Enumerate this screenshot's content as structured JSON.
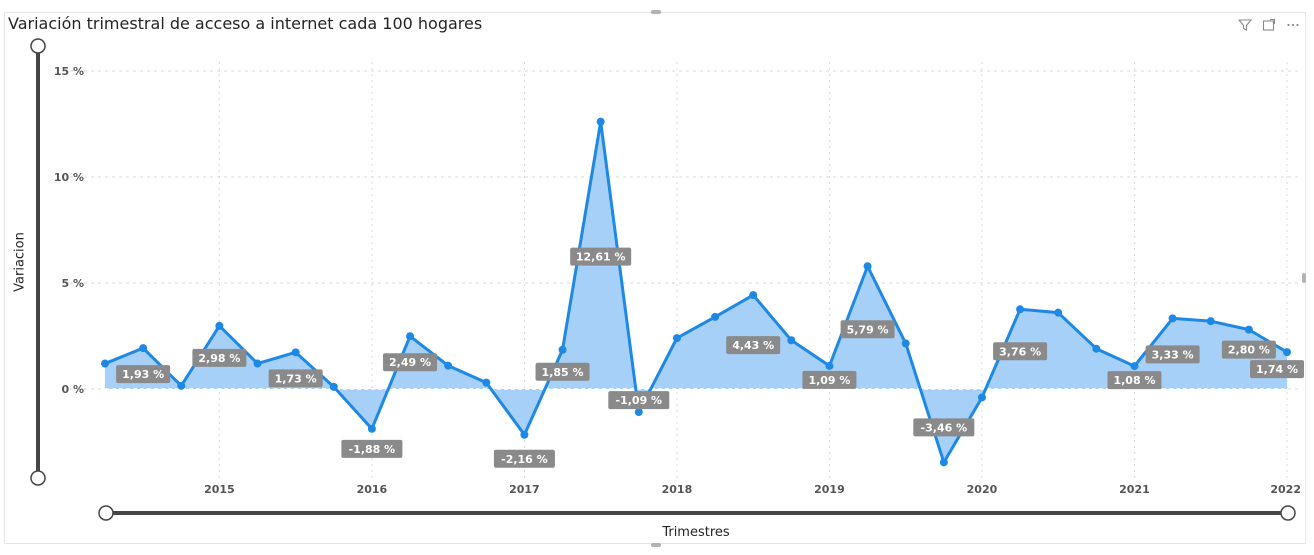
{
  "visual": {
    "title": "Variación trimestral de acceso a internet cada 100 hogares",
    "header_icons": [
      "filter-icon",
      "focus-mode-icon",
      "more-options-icon"
    ],
    "ylabel": "Variacion",
    "xlabel": "Trimestres"
  },
  "colors": {
    "line": "#1E88E5",
    "area": "#A6D0F7",
    "label_bg": "#8A8A8A",
    "label_text": "#FFFFFF",
    "grid": "#D9D9D9",
    "axis_text": "#555555",
    "slider": "#454545"
  },
  "chart_data": {
    "type": "area",
    "title": "Variación trimestral de acceso a internet cada 100 hogares",
    "xlabel": "Trimestres",
    "ylabel": "Variacion",
    "ylim": [
      -4.0,
      15.5
    ],
    "yticks": [
      0,
      5,
      10,
      15
    ],
    "ytick_labels": [
      "0 %",
      "5 %",
      "10 %",
      "15 %"
    ],
    "xlim": [
      2014.25,
      2022.0
    ],
    "xticks": [
      2015,
      2016,
      2017,
      2018,
      2019,
      2020,
      2021,
      2022
    ],
    "xtick_labels": [
      "2015",
      "2016",
      "2017",
      "2018",
      "2019",
      "2020",
      "2021",
      "2022"
    ],
    "grid": true,
    "legend": "none",
    "x": [
      2014.25,
      2014.5,
      2014.75,
      2015.0,
      2015.25,
      2015.5,
      2015.75,
      2016.0,
      2016.25,
      2016.5,
      2016.75,
      2017.0,
      2017.25,
      2017.5,
      2017.75,
      2018.0,
      2018.25,
      2018.5,
      2018.75,
      2019.0,
      2019.25,
      2019.5,
      2019.75,
      2020.0,
      2020.25,
      2020.5,
      2020.75,
      2021.0,
      2021.25,
      2021.5,
      2021.75,
      2022.0
    ],
    "values": [
      1.2,
      1.93,
      0.15,
      2.98,
      1.2,
      1.73,
      0.1,
      -1.88,
      2.49,
      1.1,
      0.3,
      -2.16,
      1.85,
      12.61,
      -1.09,
      2.4,
      3.4,
      4.43,
      2.3,
      1.09,
      5.79,
      2.15,
      -3.46,
      -0.4,
      3.76,
      3.6,
      1.9,
      1.08,
      3.33,
      3.2,
      2.8,
      1.74
    ],
    "data_labels": [
      {
        "x": 2014.5,
        "value": 1.93,
        "text": "1,93 %"
      },
      {
        "x": 2015.0,
        "value": 2.98,
        "text": "2,98 %"
      },
      {
        "x": 2015.5,
        "value": 1.73,
        "text": "1,73 %"
      },
      {
        "x": 2016.0,
        "value": -1.88,
        "text": "-1,88 %"
      },
      {
        "x": 2016.25,
        "value": 2.49,
        "text": "2,49 %"
      },
      {
        "x": 2017.0,
        "value": -2.16,
        "text": "-2,16 %"
      },
      {
        "x": 2017.25,
        "value": 1.85,
        "text": "1,85 %"
      },
      {
        "x": 2017.5,
        "value": 12.61,
        "text": "12,61 %"
      },
      {
        "x": 2017.75,
        "value": -1.09,
        "text": "-1,09 %"
      },
      {
        "x": 2018.5,
        "value": 4.43,
        "text": "4,43 %"
      },
      {
        "x": 2019.0,
        "value": 1.09,
        "text": "1,09 %"
      },
      {
        "x": 2019.25,
        "value": 5.79,
        "text": "5,79 %"
      },
      {
        "x": 2019.75,
        "value": -3.46,
        "text": "-3,46 %"
      },
      {
        "x": 2020.25,
        "value": 3.76,
        "text": "3,76 %"
      },
      {
        "x": 2021.0,
        "value": 1.08,
        "text": "1,08 %"
      },
      {
        "x": 2021.25,
        "value": 3.33,
        "text": "3,33 %"
      },
      {
        "x": 2021.75,
        "value": 2.8,
        "text": "2,80 %"
      },
      {
        "x": 2022.0,
        "value": 1.74,
        "text": "1,74 %"
      }
    ]
  }
}
